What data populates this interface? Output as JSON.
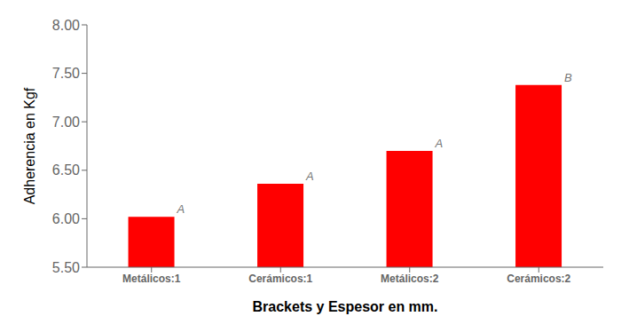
{
  "chart_data": {
    "type": "bar",
    "categories": [
      "Metálicos:1",
      "Cerámicos:1",
      "Metálicos:2",
      "Cerámicos:2"
    ],
    "values": [
      6.02,
      6.36,
      6.7,
      7.38
    ],
    "annotations": [
      "A",
      "A",
      "A",
      "B"
    ],
    "color": "#FF0000",
    "xlabel": "Brackets y Espesor en mm.",
    "ylabel": "Adherencia en Kgf",
    "ylim": [
      5.5,
      8.0
    ],
    "yticks": [
      {
        "value": 5.5,
        "label": "5.50"
      },
      {
        "value": 6.0,
        "label": "6.00"
      },
      {
        "value": 6.5,
        "label": "6.50"
      },
      {
        "value": 7.0,
        "label": "7.00"
      },
      {
        "value": 7.5,
        "label": "7.50"
      },
      {
        "value": 8.0,
        "label": "8.00"
      }
    ],
    "grid": false
  }
}
